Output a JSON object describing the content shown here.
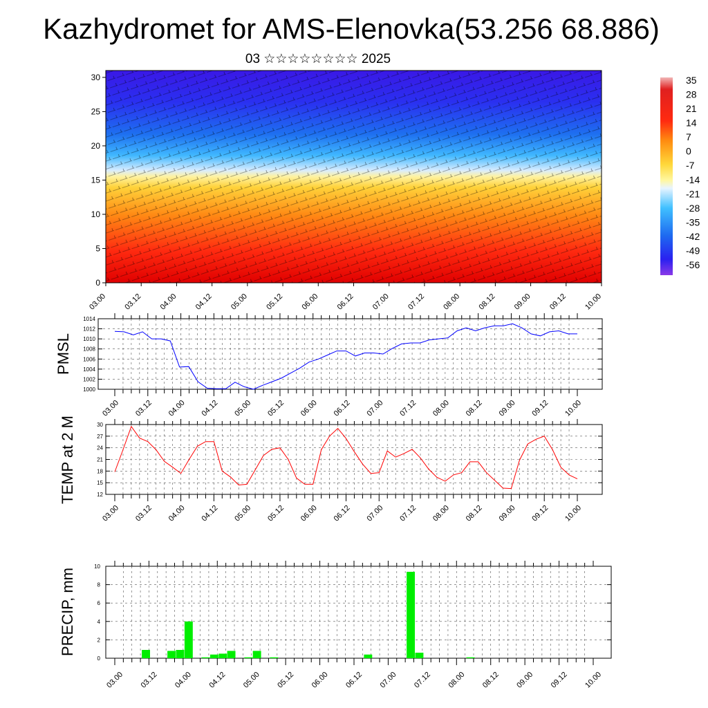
{
  "title": "Kazhydromet for AMS-Elenovka(53.256 68.886)",
  "subtitle": "03 ☆☆☆☆☆☆☆☆ 2025",
  "x_ticks": [
    "03.00",
    "03.12",
    "04.00",
    "04.12",
    "05.00",
    "05.12",
    "06.00",
    "06.12",
    "07.00",
    "07.12",
    "08.00",
    "08.12",
    "09.00",
    "09.12",
    "10.00"
  ],
  "colorbar": {
    "labels": [
      "35",
      "28",
      "21",
      "14",
      "7",
      "0",
      "-7",
      "-14",
      "-21",
      "-28",
      "-35",
      "-42",
      "-49",
      "-56"
    ]
  },
  "chart_data": [
    {
      "type": "heatmap",
      "name_hint": "temperature cross-section",
      "y_ticks": [
        0,
        5,
        10,
        15,
        20,
        25,
        30
      ],
      "ylim": [
        0,
        31
      ],
      "x": [
        "03.00",
        "03.12",
        "04.00",
        "04.12",
        "05.00",
        "05.12",
        "06.00",
        "06.12",
        "07.00",
        "07.12",
        "08.00",
        "08.12",
        "09.00",
        "09.12",
        "10.00"
      ],
      "ylabel": "",
      "colorscale": [
        "#8a2be2",
        "#2a1cf0",
        "#1e90ff",
        "#40c8ff",
        "#f5f5dc",
        "#ffe14a",
        "#ff9a1a",
        "#ff3a10",
        "#d40000",
        "#f0b0b0"
      ]
    },
    {
      "type": "line",
      "ylabel": "PMSL",
      "ylim": [
        1000,
        1014
      ],
      "y_ticks": [
        1000,
        1002,
        1004,
        1006,
        1008,
        1010,
        1012,
        1014
      ],
      "color": "#0000ff",
      "x_steps": 42,
      "values": [
        1011.5,
        1011.4,
        1010.8,
        1011.4,
        1010.0,
        1010.0,
        1009.6,
        1004.4,
        1004.5,
        1001.5,
        1000.2,
        1000.1,
        1000.1,
        1001.4,
        1000.5,
        1000.0,
        1000.8,
        1001.5,
        1002.2,
        1003.2,
        1004.2,
        1005.4,
        1006.0,
        1006.8,
        1007.6,
        1007.6,
        1006.6,
        1007.2,
        1007.2,
        1007.0,
        1008.1,
        1009.0,
        1009.2,
        1009.2,
        1009.8,
        1010.0,
        1010.2,
        1011.6,
        1012.2,
        1011.6,
        1012.2,
        1012.6,
        1012.6,
        1013.0,
        1012.2,
        1011.0,
        1010.6,
        1011.4,
        1011.6,
        1011.0,
        1011.0
      ]
    },
    {
      "type": "line",
      "ylabel": "TEMP at 2 M",
      "ylim": [
        12,
        30
      ],
      "y_ticks": [
        12,
        15,
        18,
        21,
        24,
        27,
        30
      ],
      "color": "#ff0000",
      "values": [
        17.8,
        23.5,
        29.5,
        26.5,
        25.6,
        23.5,
        20.5,
        19.0,
        17.4,
        21.0,
        24.4,
        25.6,
        25.6,
        18.0,
        16.5,
        14.4,
        14.6,
        18.3,
        22.0,
        23.6,
        24.0,
        21.0,
        16.2,
        14.6,
        14.6,
        23.5,
        27.0,
        29.0,
        26.4,
        23.0,
        19.8,
        17.4,
        17.6,
        23.2,
        21.6,
        22.5,
        23.6,
        21.4,
        18.5,
        16.4,
        15.4,
        17.0,
        17.6,
        20.4,
        20.4,
        17.6,
        15.6,
        13.6,
        13.5,
        20.8,
        25.0,
        26.2,
        27.0,
        23.5,
        19.0,
        17.0,
        16.0
      ]
    },
    {
      "type": "bar",
      "ylabel": "PRECIP, mm",
      "ylim": [
        0,
        10
      ],
      "y_ticks": [
        0,
        2,
        4,
        6,
        8,
        10
      ],
      "color": "#00ee00",
      "values": [
        0,
        0,
        0,
        0.9,
        0,
        0,
        0.8,
        0.9,
        4.0,
        0,
        0.1,
        0.4,
        0.5,
        0.8,
        0,
        0.1,
        0.8,
        0,
        0.1,
        0,
        0,
        0,
        0,
        0,
        0,
        0,
        0,
        0,
        0,
        0.4,
        0,
        0,
        0,
        0,
        9.4,
        0.6,
        0,
        0,
        0,
        0,
        0,
        0.1,
        0,
        0,
        0,
        0,
        0,
        0,
        0,
        0,
        0,
        0,
        0,
        0,
        0,
        0
      ]
    }
  ]
}
